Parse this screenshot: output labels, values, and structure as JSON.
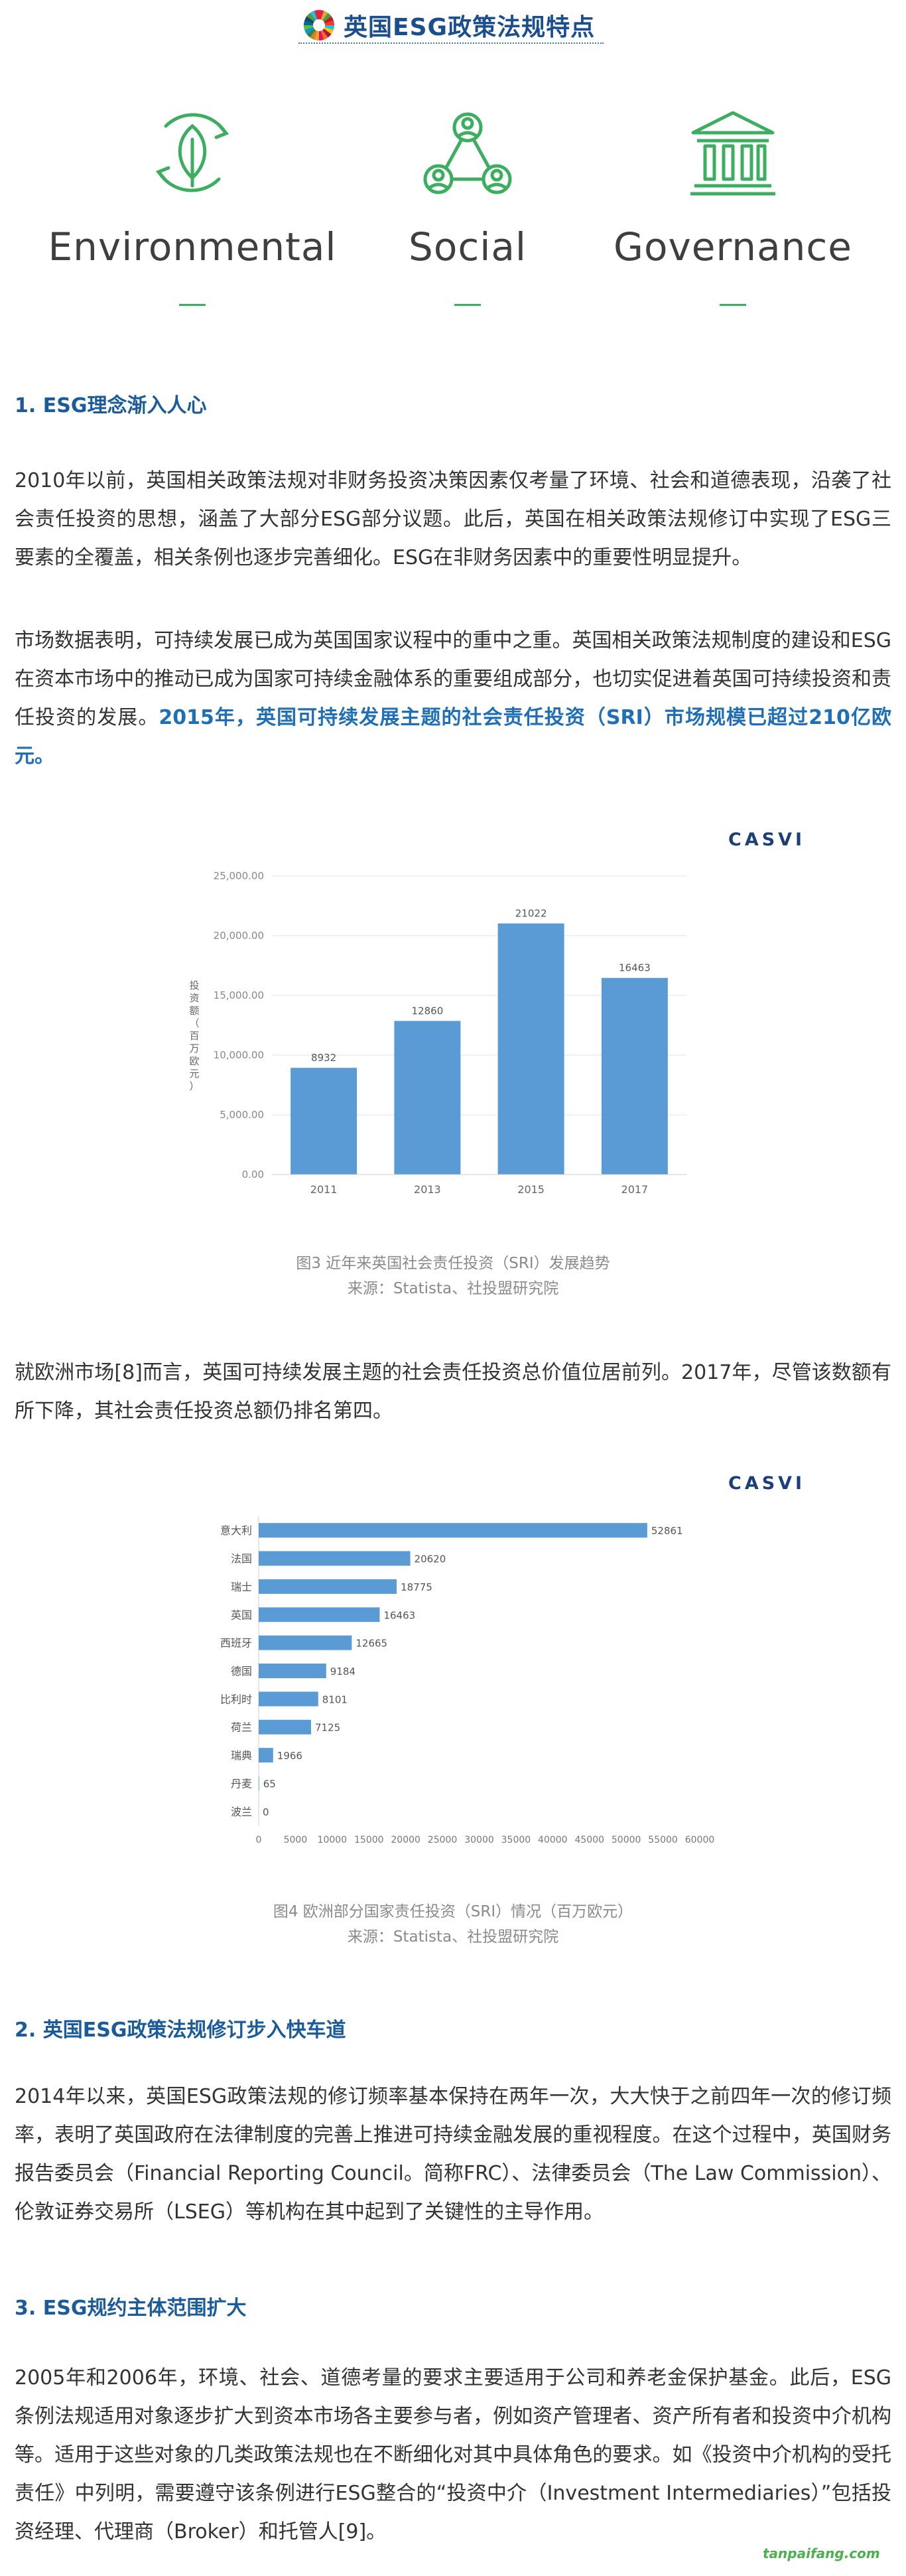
{
  "header": {
    "title": "英国ESG政策法规特点"
  },
  "pillars": [
    {
      "label": "Environmental",
      "icon": "leaf-cycle-icon"
    },
    {
      "label": "Social",
      "icon": "people-network-icon"
    },
    {
      "label": "Governance",
      "icon": "institution-building-icon"
    }
  ],
  "accent_color": "#3cae5f",
  "section1": {
    "heading": "1. ESG理念渐入人心",
    "p1": "2010年以前，英国相关政策法规对非财务投资决策因素仅考量了环境、社会和道德表现，沿袭了社会责任投资的思想，涵盖了大部分ESG部分议题。此后，英国在相关政策法规修订中实现了ESG三要素的全覆盖，相关条例也逐步完善细化。ESG在非财务因素中的重要性明显提升。",
    "p2_normal": "市场数据表明，可持续发展已成为英国国家议程中的重中之重。英国相关政策法规制度的建设和ESG在资本市场中的推动已成为国家可持续金融体系的重要组成部分，也切实促进着英国可持续投资和责任投资的发展。",
    "p2_highlight": "2015年，英国可持续发展主题的社会责任投资（SRI）市场规模已超过210亿欧元。"
  },
  "chart1": {
    "brand": "CASVI",
    "caption_line1": "图3  近年来英国社会责任投资（SRI）发展趋势",
    "caption_line2": "来源：Statista、社投盟研究院"
  },
  "chart2": {
    "brand": "CASVI",
    "caption_line1": "图4  欧洲部分国家责任投资（SRI）情况（百万欧元）",
    "caption_line2": "来源：Statista、社投盟研究院"
  },
  "para_europe": "就欧洲市场[8]而言，英国可持续发展主题的社会责任投资总价值位居前列。2017年，尽管该数额有所下降，其社会责任投资总额仍排名第四。",
  "section2": {
    "heading": "2. 英国ESG政策法规修订步入快车道",
    "p1": "2014年以来，英国ESG政策法规的修订频率基本保持在两年一次，大大快于之前四年一次的修订频率，表明了英国政府在法律制度的完善上推进可持续金融发展的重视程度。在这个过程中，英国财务报告委员会（Financial Reporting Council。简称FRC）、法律委员会（The Law Commission）、伦敦证券交易所（LSEG）等机构在其中起到了关键性的主导作用。"
  },
  "section3": {
    "heading": "3. ESG规约主体范围扩大",
    "p1": "2005年和2006年，环境、社会、道德考量的要求主要适用于公司和养老金保护基金。此后，ESG条例法规适用对象逐步扩大到资本市场各主要参与者，例如资产管理者、资产所有者和投资中介机构等。适用于这些对象的几类政策法规也在不断细化对其中具体角色的要求。如《投资中介机构的受托责任》中列明，需要遵守该条例进行ESG整合的“投资中介（Investment Intermediaries）”包括投资经理、代理商（Broker）和托管人[9]。"
  },
  "watermark": "tanpaifang.com",
  "chart_data": [
    {
      "type": "bar",
      "title": "",
      "categories": [
        "2011",
        "2013",
        "2015",
        "2017"
      ],
      "values": [
        8932,
        12860,
        21022,
        16463
      ],
      "data_labels": [
        "8932",
        "12860",
        "21022",
        "16463"
      ],
      "ylabel": "投资额（百万欧元）",
      "ylim": [
        0,
        25000
      ],
      "y_ticks": [
        "0.00",
        "5,000.00",
        "10,000.00",
        "15,000.00",
        "20,000.00",
        "25,000.00"
      ],
      "color": "#5b9bd5",
      "grid": true
    },
    {
      "type": "bar",
      "orientation": "horizontal",
      "title": "",
      "categories": [
        "意大利",
        "法国",
        "瑞士",
        "英国",
        "西班牙",
        "德国",
        "比利时",
        "荷兰",
        "瑞典",
        "丹麦",
        "波兰"
      ],
      "values": [
        52861,
        20620,
        18775,
        16463,
        12665,
        9184,
        8101,
        7125,
        1966,
        65,
        0
      ],
      "data_labels": [
        "52861",
        "20620",
        "18775",
        "16463",
        "12665",
        "9184",
        "8101",
        "7125",
        "1966",
        "65",
        "0"
      ],
      "xlim": [
        0,
        60000
      ],
      "x_ticks": [
        "0",
        "5000",
        "10000",
        "15000",
        "20000",
        "25000",
        "30000",
        "35000",
        "40000",
        "45000",
        "50000",
        "55000",
        "60000"
      ],
      "color": "#5b9bd5",
      "grid": false
    }
  ]
}
